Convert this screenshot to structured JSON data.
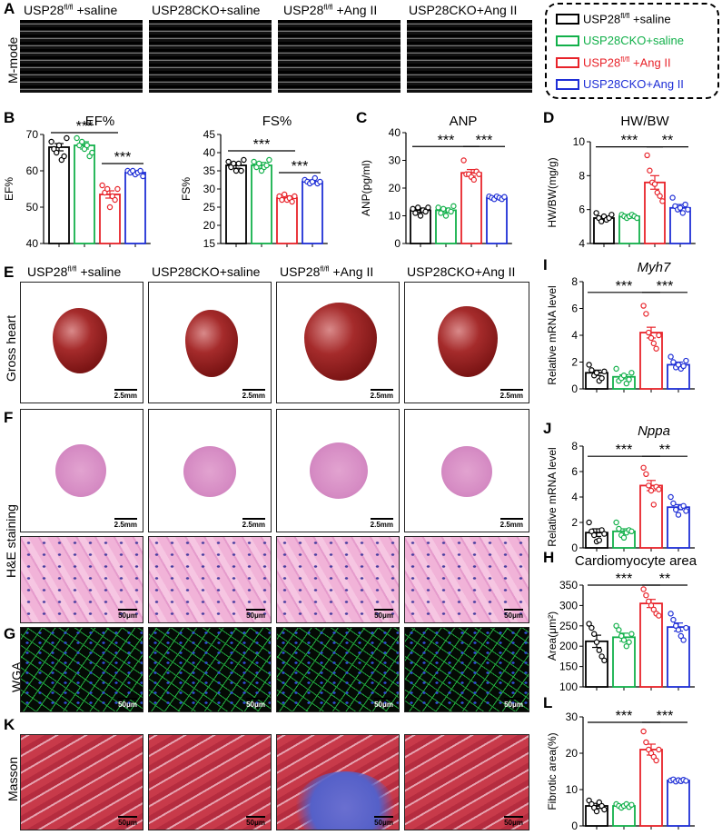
{
  "panels": {
    "A": "A",
    "B": "B",
    "C": "C",
    "D": "D",
    "E": "E",
    "F": "F",
    "G": "G",
    "H": "H",
    "I": "I",
    "J": "J",
    "K": "K",
    "L": "L"
  },
  "groups_top": [
    {
      "base": "USP28",
      "sup": "fl/fl",
      "rest": " +saline"
    },
    {
      "base": "USP28CKO+saline",
      "sup": "",
      "rest": ""
    },
    {
      "base": "USP28",
      "sup": "fl/fl",
      "rest": " +Ang II"
    },
    {
      "base": "USP28CKO+Ang II",
      "sup": "",
      "rest": ""
    }
  ],
  "groups_mid": [
    {
      "base": "USP28",
      "sup": "fl/fl",
      "rest": " +saline"
    },
    {
      "base": "USP28CKO+saline",
      "sup": "",
      "rest": ""
    },
    {
      "base": "USP28",
      "sup": "fl/fl",
      "rest": " +Ang II"
    },
    {
      "base": "USP28CKO+Ang II",
      "sup": "",
      "rest": ""
    }
  ],
  "row_labels": {
    "mmode": "M-mode",
    "gross": "Gross heart",
    "he": "H&E staining",
    "wga": "WGA",
    "masson": "Masson"
  },
  "scale_bars": {
    "gross": "2.5mm",
    "he_low": "2.5mm",
    "micro": "50μm"
  },
  "legend": {
    "items": [
      {
        "base": "USP28",
        "sup": "fl/fl",
        "rest": " +saline",
        "color": "#000000",
        "text_color": "#000000"
      },
      {
        "base": "USP28CKO+saline",
        "sup": "",
        "rest": "",
        "color": "#12b04a",
        "text_color": "#12b04a"
      },
      {
        "base": "USP28",
        "sup": "fl/fl",
        "rest": " +Ang II",
        "color": "#e8232a",
        "text_color": "#e8232a"
      },
      {
        "base": "USP28CKO+Ang II",
        "sup": "",
        "rest": "",
        "color": "#1f2fd6",
        "text_color": "#1f2fd6"
      }
    ]
  },
  "colors": [
    "#000000",
    "#12b04a",
    "#e8232a",
    "#1f2fd6"
  ],
  "chart_data": [
    {
      "id": "EF",
      "type": "bar",
      "title": "EF%",
      "italic": false,
      "ylabel": "EF%",
      "ylim": [
        40,
        70
      ],
      "yticks": [
        40,
        50,
        60,
        70
      ],
      "values": [
        66.5,
        67,
        53.5,
        59.5
      ],
      "errors": [
        1,
        1,
        1,
        0.5
      ],
      "points": [
        [
          68,
          66,
          65,
          67,
          63,
          64,
          69
        ],
        [
          69,
          67,
          68,
          66,
          67,
          64,
          65
        ],
        [
          56,
          54,
          55,
          50,
          53,
          52,
          55
        ],
        [
          60,
          59.5,
          60,
          59,
          59.5,
          60,
          58.5
        ]
      ],
      "sig": [
        {
          "from": 0,
          "to": 2,
          "y": 70.5,
          "label": "***"
        },
        {
          "from": 2,
          "to": 3,
          "y": 62,
          "label": "***"
        }
      ]
    },
    {
      "id": "FS",
      "type": "bar",
      "title": "FS%",
      "italic": false,
      "ylabel": "FS%",
      "ylim": [
        15,
        45
      ],
      "yticks": [
        15,
        20,
        25,
        30,
        35,
        40,
        45
      ],
      "values": [
        36.5,
        36.5,
        27.5,
        32
      ],
      "errors": [
        0.8,
        0.8,
        0.6,
        0.5
      ],
      "points": [
        [
          37.5,
          36,
          37,
          35,
          37,
          35,
          38
        ],
        [
          37.5,
          36,
          37,
          35,
          36,
          36.5,
          38
        ],
        [
          28,
          27,
          28.5,
          27,
          27.5,
          26.5,
          28
        ],
        [
          32.5,
          32,
          31.5,
          32,
          33,
          31.5,
          32
        ]
      ],
      "sig": [
        {
          "from": 0,
          "to": 2,
          "y": 40.5,
          "label": "***"
        },
        {
          "from": 2,
          "to": 3,
          "y": 34.5,
          "label": "***"
        }
      ]
    },
    {
      "id": "ANP",
      "type": "bar",
      "title": "ANP",
      "italic": false,
      "ylabel": "ANP(pg/ml)",
      "ylim": [
        0,
        40
      ],
      "yticks": [
        0,
        10,
        20,
        30,
        40
      ],
      "values": [
        12,
        12,
        25.5,
        16.5
      ],
      "errors": [
        0.8,
        0.8,
        1.2,
        0.4
      ],
      "points": [
        [
          12.5,
          11,
          13,
          10,
          12,
          11.5,
          13
        ],
        [
          13,
          11,
          12.5,
          10,
          12,
          11.5,
          13.5
        ],
        [
          30,
          25,
          25,
          24,
          23,
          26,
          25
        ],
        [
          17,
          16.5,
          16,
          17,
          16.5,
          16,
          16.8
        ]
      ],
      "sig": [
        {
          "from": 0,
          "to": 2,
          "y": 35,
          "label": "***"
        },
        {
          "from": 2,
          "to": 3,
          "y": 35,
          "label": "***"
        }
      ]
    },
    {
      "id": "HWBW",
      "type": "bar",
      "title": "HW/BW",
      "italic": false,
      "ylabel": "HW/BW(mg/g)",
      "ylim": [
        4,
        10
      ],
      "yticks": [
        4,
        6,
        8,
        10
      ],
      "values": [
        5.5,
        5.6,
        7.6,
        6.1
      ],
      "errors": [
        0.1,
        0.1,
        0.4,
        0.2
      ],
      "points": [
        [
          5.8,
          5.5,
          5.3,
          5.6,
          5.4,
          5.5,
          5.7
        ],
        [
          5.7,
          5.6,
          5.5,
          5.6,
          5.7,
          5.6,
          5.5
        ],
        [
          9.2,
          8.3,
          7.6,
          7.5,
          7,
          6.8,
          6.5
        ],
        [
          6.7,
          6.2,
          6.0,
          6.1,
          5.8,
          6.3,
          6.0
        ]
      ],
      "sig": [
        {
          "from": 0,
          "to": 2,
          "y": 9.7,
          "label": "***"
        },
        {
          "from": 2,
          "to": 3,
          "y": 9.7,
          "label": "**"
        }
      ]
    },
    {
      "id": "Myh7",
      "type": "bar",
      "title": "Myh7",
      "italic": true,
      "ylabel": "Relative mRNA level",
      "ylim": [
        0,
        8
      ],
      "yticks": [
        0,
        2,
        4,
        6,
        8
      ],
      "values": [
        1.2,
        0.9,
        4.2,
        1.8
      ],
      "errors": [
        0.2,
        0.15,
        0.4,
        0.2
      ],
      "points": [
        [
          1.8,
          1.4,
          1.0,
          1.2,
          0.6,
          0.8,
          1.3
        ],
        [
          1.5,
          0.6,
          0.8,
          1.0,
          0.4,
          0.7,
          1.2
        ],
        [
          6.2,
          5.6,
          4.2,
          3.8,
          3.4,
          3.0,
          4.0
        ],
        [
          2.4,
          2.0,
          1.6,
          1.8,
          1.5,
          1.7,
          2.1
        ]
      ],
      "sig": [
        {
          "from": 0,
          "to": 2,
          "y": 7.2,
          "label": "***"
        },
        {
          "from": 2,
          "to": 3,
          "y": 7.2,
          "label": "***"
        }
      ]
    },
    {
      "id": "Nppa",
      "type": "bar",
      "title": "Nppa",
      "italic": true,
      "ylabel": "Relative mRNA level",
      "ylim": [
        0,
        8
      ],
      "yticks": [
        0,
        2,
        4,
        6,
        8
      ],
      "values": [
        1.2,
        1.3,
        4.9,
        3.2
      ],
      "errors": [
        0.3,
        0.2,
        0.4,
        0.2
      ],
      "points": [
        [
          2.0,
          1.3,
          1.0,
          0.5,
          0.6,
          1.4,
          1.1
        ],
        [
          2.0,
          1.5,
          1.0,
          0.8,
          1.2,
          1.4,
          1.3
        ],
        [
          6.3,
          5.8,
          4.9,
          4.5,
          3.4,
          4.8,
          4.6
        ],
        [
          4.0,
          3.5,
          3.0,
          2.6,
          3.2,
          3.3,
          2.9
        ]
      ],
      "sig": [
        {
          "from": 0,
          "to": 2,
          "y": 7.2,
          "label": "***"
        },
        {
          "from": 2,
          "to": 3,
          "y": 7.2,
          "label": "**"
        }
      ]
    },
    {
      "id": "Area",
      "type": "bar",
      "title": "Cardiomyocyte area",
      "italic": false,
      "ylabel": "Area(μm²)",
      "ylim": [
        100,
        350
      ],
      "yticks": [
        100,
        150,
        200,
        250,
        300,
        350
      ],
      "values": [
        212,
        222,
        305,
        247
      ],
      "errors": [
        15,
        10,
        10,
        10
      ],
      "points": [
        [
          255,
          245,
          230,
          210,
          190,
          175,
          165
        ],
        [
          250,
          240,
          225,
          215,
          200,
          210,
          230
        ],
        [
          340,
          325,
          310,
          300,
          290,
          280,
          275
        ],
        [
          280,
          265,
          250,
          240,
          225,
          215,
          245
        ]
      ],
      "sig": [
        {
          "from": 0,
          "to": 2,
          "y": 350,
          "label": "***"
        },
        {
          "from": 2,
          "to": 3,
          "y": 350,
          "label": "**"
        }
      ]
    },
    {
      "id": "Fibrotic",
      "type": "bar",
      "title": "",
      "italic": false,
      "ylabel": "Fibrotic area(%)",
      "ylim": [
        0,
        30
      ],
      "yticks": [
        0,
        10,
        20,
        30
      ],
      "values": [
        5.5,
        5.5,
        21,
        12.5
      ],
      "errors": [
        0.7,
        0.3,
        1.5,
        0.2
      ],
      "points": [
        [
          7,
          6,
          5,
          4,
          6.5,
          5.5,
          4.5
        ],
        [
          6,
          5.5,
          5,
          5.5,
          6,
          5.2,
          5.8
        ],
        [
          26,
          23,
          21,
          20,
          19,
          18,
          21
        ],
        [
          12.5,
          12.8,
          12.2,
          12.6,
          12.3,
          12.7,
          12.4
        ]
      ],
      "sig": [
        {
          "from": 0,
          "to": 2,
          "y": 28.5,
          "label": "***"
        },
        {
          "from": 2,
          "to": 3,
          "y": 28.5,
          "label": "***"
        }
      ]
    }
  ]
}
